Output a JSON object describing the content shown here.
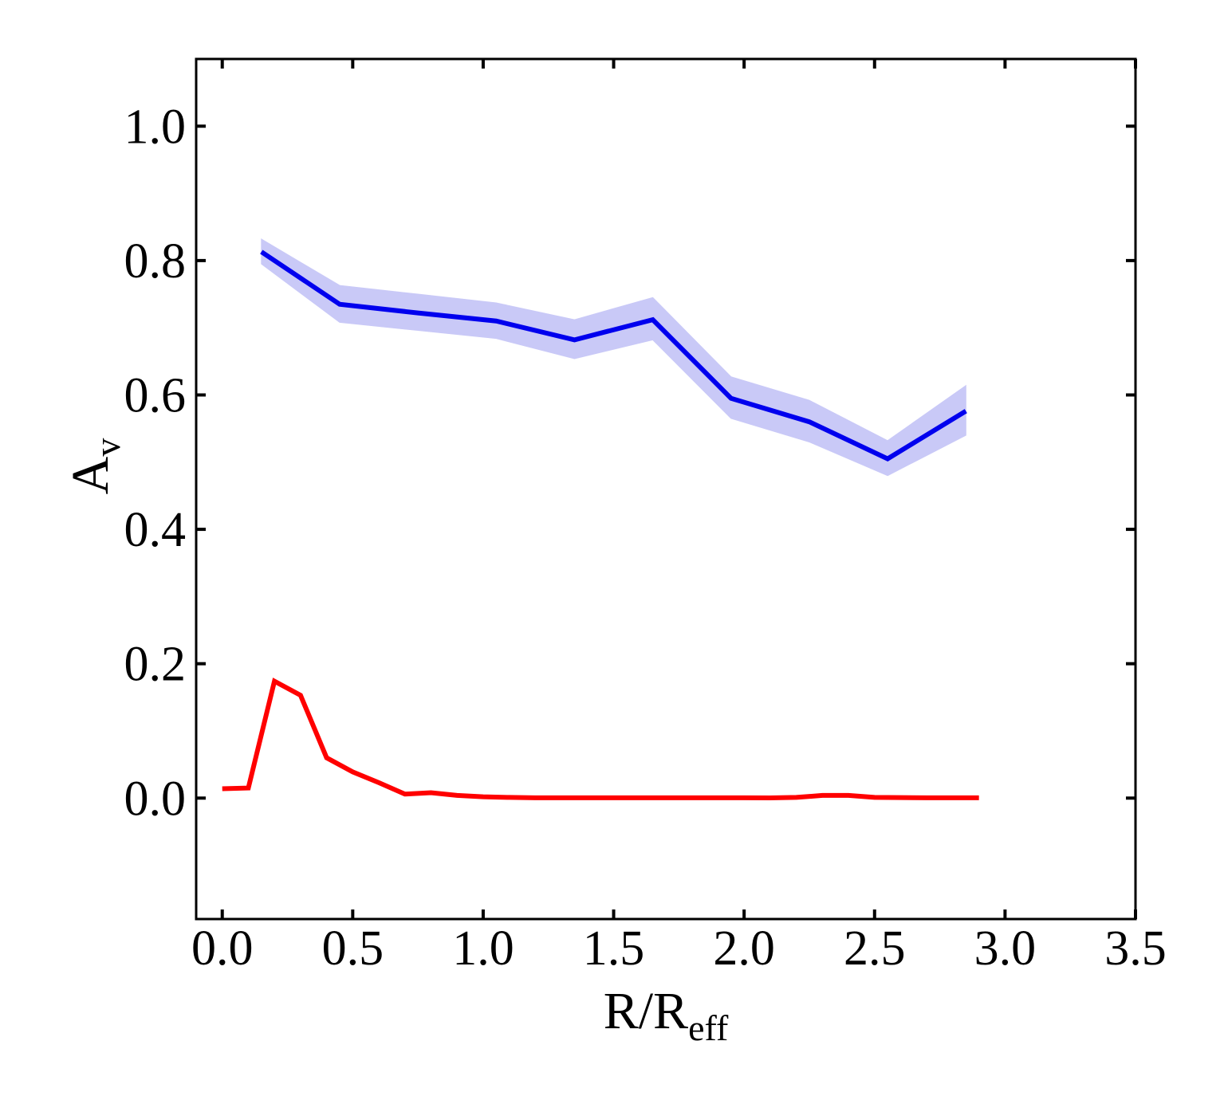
{
  "chart_data": {
    "type": "line",
    "title": "",
    "xlabel": {
      "main": "R/R",
      "sub": "eff"
    },
    "ylabel": {
      "main": "A",
      "sub": "v"
    },
    "xlim": [
      -0.1,
      3.5
    ],
    "ylim": [
      -0.18,
      1.1
    ],
    "xticks": [
      0.0,
      0.5,
      1.0,
      1.5,
      2.0,
      2.5,
      3.0,
      3.5
    ],
    "xtick_labels": [
      "0.0",
      "0.5",
      "1.0",
      "1.5",
      "2.0",
      "2.5",
      "3.0",
      "3.5"
    ],
    "yticks": [
      0.0,
      0.2,
      0.4,
      0.6,
      0.8,
      1.0
    ],
    "ytick_labels": [
      "0.0",
      "0.2",
      "0.4",
      "0.6",
      "0.8",
      "1.0"
    ],
    "grid": false,
    "legend": "none",
    "series": [
      {
        "color": "#0000ee",
        "band_color": "#c9c9f7",
        "x": [
          0.15,
          0.45,
          0.75,
          1.05,
          1.35,
          1.65,
          1.95,
          2.25,
          2.55,
          2.85
        ],
        "y": [
          0.813,
          0.735,
          0.722,
          0.71,
          0.682,
          0.712,
          0.595,
          0.56,
          0.505,
          0.576
        ],
        "y_low": [
          0.795,
          0.708,
          0.696,
          0.684,
          0.654,
          0.682,
          0.565,
          0.53,
          0.48,
          0.54
        ],
        "y_high": [
          0.832,
          0.763,
          0.75,
          0.737,
          0.712,
          0.745,
          0.627,
          0.592,
          0.532,
          0.614
        ]
      },
      {
        "color": "#ff0000",
        "x": [
          0.0,
          0.1,
          0.2,
          0.3,
          0.4,
          0.5,
          0.6,
          0.7,
          0.8,
          0.9,
          1.0,
          1.1,
          1.2,
          1.3,
          1.4,
          1.5,
          1.6,
          1.7,
          1.8,
          1.9,
          2.0,
          2.1,
          2.2,
          2.3,
          2.4,
          2.5,
          2.6,
          2.7,
          2.8,
          2.9
        ],
        "y": [
          0.014,
          0.015,
          0.174,
          0.153,
          0.06,
          0.039,
          0.023,
          0.006,
          0.008,
          0.004,
          0.002,
          0.001,
          0.0005,
          0.0005,
          0.0005,
          0.0005,
          0.0005,
          0.0005,
          0.0005,
          0.0005,
          0.0005,
          0.0003,
          0.001,
          0.004,
          0.004,
          0.001,
          0.0008,
          0.0005,
          0.0005,
          0.0005
        ]
      }
    ]
  }
}
